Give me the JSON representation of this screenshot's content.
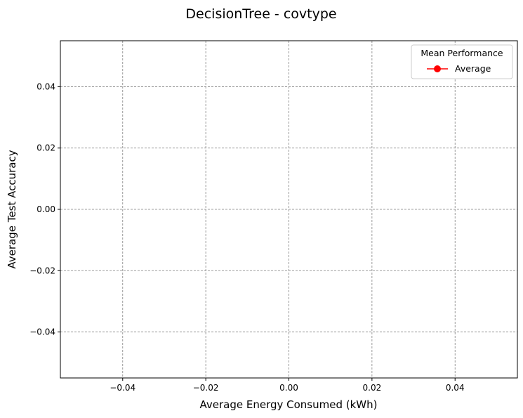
{
  "chart_data": {
    "type": "line",
    "title": "DecisionTree - covtype",
    "xlabel": "Average Energy Consumed (kWh)",
    "ylabel": "Average Test Accuracy",
    "xlim": [
      -0.055,
      0.055
    ],
    "ylim": [
      -0.055,
      0.055
    ],
    "xticks": [
      -0.04,
      -0.02,
      0.0,
      0.02,
      0.04
    ],
    "yticks": [
      -0.04,
      -0.02,
      0.0,
      0.02,
      0.04
    ],
    "xtick_labels": [
      "−0.04",
      "−0.02",
      "0.00",
      "0.02",
      "0.04"
    ],
    "ytick_labels": [
      "−0.04",
      "−0.02",
      "0.00",
      "0.02",
      "0.04"
    ],
    "grid": true,
    "legend": {
      "title": "Mean Performance",
      "placement": "top-right",
      "entries": [
        {
          "name": "Average",
          "color": "#ff0000",
          "marker": "circle"
        }
      ]
    },
    "series": [
      {
        "name": "Average",
        "color": "#ff0000",
        "x": [],
        "y": []
      }
    ]
  }
}
